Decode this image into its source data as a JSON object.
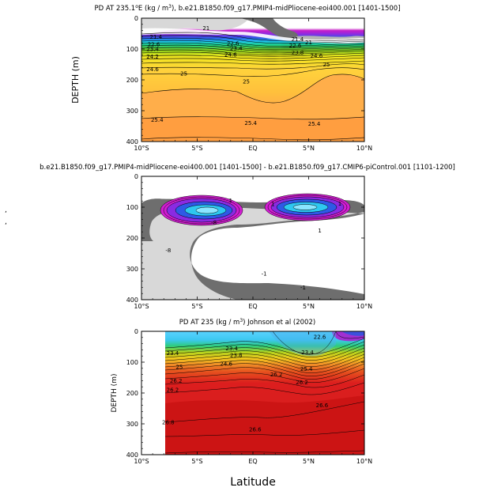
{
  "figure": {
    "xlabel": "Latitude",
    "side_marks": [
      ",",
      ","
    ]
  },
  "chart_data": [
    {
      "type": "heatmap",
      "title_html": "PD AT 235.1°E (kg / m³), b.e21.B1850.f09_g17.PMIP4-midPliocene-eoi400.001 [1401-1500]",
      "title_parts": [
        "PD AT 235.1",
        "o",
        "E (kg / m",
        "3",
        "), b.e21.B1850.f09_g17.PMIP4-midPliocene-eoi400.001 [1401-1500]"
      ],
      "ylabel": "DEPTH (m)",
      "xlim": [
        -10,
        10
      ],
      "ylim": [
        0,
        400
      ],
      "xticks": [
        -10,
        -5,
        0,
        5,
        10
      ],
      "xtick_labels": [
        "10°S",
        "5°S",
        "EQ",
        "5°N",
        "10°N"
      ],
      "yticks": [
        0,
        100,
        200,
        300,
        400
      ],
      "contour_labels": [
        {
          "value": "21",
          "x": -4.2,
          "y": 32
        },
        {
          "value": "21.4",
          "x": -8.7,
          "y": 60
        },
        {
          "value": "21.4",
          "x": 4.0,
          "y": 68
        },
        {
          "value": "21",
          "x": 5.0,
          "y": 78
        },
        {
          "value": "22.6",
          "x": -8.9,
          "y": 84
        },
        {
          "value": "22.6",
          "x": -1.8,
          "y": 82
        },
        {
          "value": "22.6",
          "x": 3.8,
          "y": 88
        },
        {
          "value": "23.4",
          "x": -9.0,
          "y": 100
        },
        {
          "value": "23.4",
          "x": -1.5,
          "y": 98
        },
        {
          "value": "23.8",
          "x": 4.0,
          "y": 112
        },
        {
          "value": "24.2",
          "x": -9.0,
          "y": 124
        },
        {
          "value": "24.6",
          "x": -2.0,
          "y": 118
        },
        {
          "value": "24.6",
          "x": 5.7,
          "y": 122
        },
        {
          "value": "24.6",
          "x": -9.0,
          "y": 165
        },
        {
          "value": "25",
          "x": 6.6,
          "y": 150
        },
        {
          "value": "25",
          "x": -6.2,
          "y": 180
        },
        {
          "value": "25",
          "x": -0.6,
          "y": 205
        },
        {
          "value": "25.4",
          "x": -8.6,
          "y": 330
        },
        {
          "value": "25.4",
          "x": -0.2,
          "y": 340
        },
        {
          "value": "25.4",
          "x": 5.5,
          "y": 342
        }
      ]
    },
    {
      "type": "heatmap",
      "title": "b.e21.B1850.f09_g17.PMIP4-midPliocene-eoi400.001 [1401-1500] - b.e21.B1850.f09_g17.CMIP6-piControl.001 [1101-1200]",
      "ylabel": "",
      "xlim": [
        -10,
        10
      ],
      "ylim": [
        0,
        400
      ],
      "xticks": [
        -10,
        -5,
        0,
        5,
        10
      ],
      "xtick_labels": [
        "10°S",
        "5°S",
        "EQ",
        "5°N",
        "10°N"
      ],
      "yticks": [
        0,
        100,
        200,
        300,
        400
      ],
      "contour_labels": [
        {
          "value": "1",
          "x": -2.0,
          "y": 78
        },
        {
          "value": "1",
          "x": 1.8,
          "y": 90
        },
        {
          "value": "1",
          "x": 7.8,
          "y": 88
        },
        {
          "value": "-8",
          "x": -3.5,
          "y": 150
        },
        {
          "value": "-8",
          "x": -7.6,
          "y": 240
        },
        {
          "value": "-1",
          "x": 1.0,
          "y": 315
        },
        {
          "value": "-1",
          "x": 4.5,
          "y": 360
        },
        {
          "value": "1",
          "x": 6.0,
          "y": 175
        }
      ]
    },
    {
      "type": "heatmap",
      "title": "PD AT 235 (kg / m³) Johnson et al (2002)",
      "title_parts": [
        "PD AT 235 (kg / m",
        "3",
        ") Johnson et al (2002)"
      ],
      "ylabel": "DEPTH (m)",
      "xlim": [
        -10,
        10
      ],
      "ylim": [
        0,
        400
      ],
      "data_extent": [
        -7.9,
        10
      ],
      "xticks": [
        -10,
        -5,
        0,
        5,
        10
      ],
      "xtick_labels": [
        "10°S",
        "5°S",
        "EQ",
        "5°N",
        "10°N"
      ],
      "yticks": [
        0,
        100,
        200,
        300,
        400
      ],
      "contour_labels": [
        {
          "value": "22.6",
          "x": 6.0,
          "y": 18
        },
        {
          "value": "23.4",
          "x": -7.2,
          "y": 70
        },
        {
          "value": "23.4",
          "x": -1.9,
          "y": 55
        },
        {
          "value": "23.8",
          "x": -1.5,
          "y": 77
        },
        {
          "value": "23.4",
          "x": 4.9,
          "y": 68
        },
        {
          "value": "25",
          "x": -6.6,
          "y": 115
        },
        {
          "value": "24.6",
          "x": -2.4,
          "y": 105
        },
        {
          "value": "25.4",
          "x": 4.8,
          "y": 122
        },
        {
          "value": "26.2",
          "x": -6.9,
          "y": 160
        },
        {
          "value": "26.2",
          "x": 2.1,
          "y": 140
        },
        {
          "value": "26.2",
          "x": 4.4,
          "y": 165
        },
        {
          "value": "26.2",
          "x": -7.2,
          "y": 190
        },
        {
          "value": "26.6",
          "x": 6.2,
          "y": 240
        },
        {
          "value": "26.8",
          "x": -7.6,
          "y": 295
        },
        {
          "value": "26.6",
          "x": 0.2,
          "y": 318
        }
      ]
    }
  ]
}
